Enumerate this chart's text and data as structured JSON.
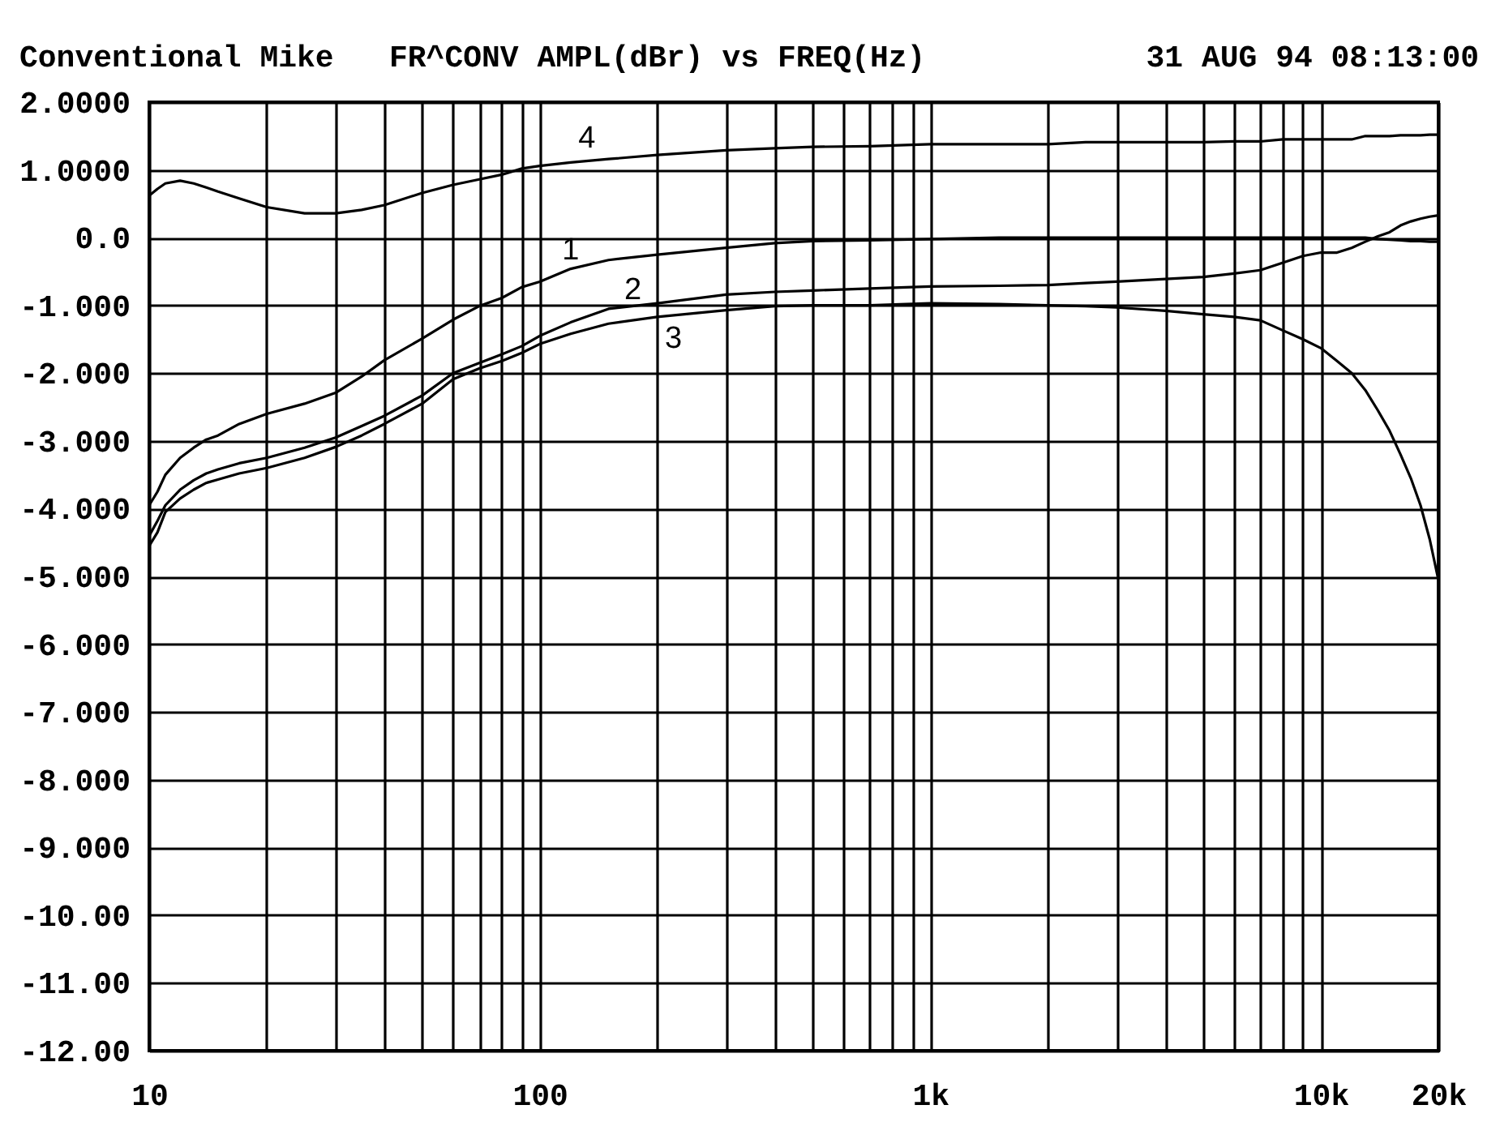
{
  "chart_data": {
    "type": "line",
    "title": "Conventional Mike",
    "subtitle": "FR^CONV AMPL(dBr) vs FREQ(Hz)",
    "annotations": [
      "31 AUG 94 08:13:00"
    ],
    "x": [
      10,
      10.5,
      11,
      12,
      13,
      14,
      15,
      17,
      20,
      25,
      30,
      35,
      40,
      50,
      60,
      70,
      80,
      90,
      100,
      120,
      150,
      200,
      300,
      400,
      500,
      700,
      1000,
      1500,
      2000,
      2500,
      3000,
      4000,
      5000,
      6000,
      7000,
      8000,
      9000,
      10000,
      11000,
      12000,
      13000,
      14000,
      15000,
      16000,
      17000,
      18000,
      19000,
      20000
    ],
    "series": [
      {
        "name": "1",
        "color": "#000000",
        "values": [
          -3.95,
          -3.75,
          -3.5,
          -3.25,
          -3.1,
          -2.98,
          -2.92,
          -2.75,
          -2.6,
          -2.45,
          -2.29,
          -2.05,
          -1.81,
          -1.49,
          -1.21,
          -1.01,
          -0.89,
          -0.73,
          -0.65,
          -0.46,
          -0.33,
          -0.25,
          -0.15,
          -0.08,
          -0.05,
          -0.04,
          -0.02,
          0,
          0,
          0,
          0,
          0,
          0,
          0,
          0,
          0,
          0,
          0,
          0,
          0,
          0,
          -0.02,
          -0.03,
          -0.04,
          -0.05,
          -0.05,
          -0.06,
          -0.06
        ]
      },
      {
        "name": "2",
        "color": "#000000",
        "values": [
          -4.4,
          -4.18,
          -3.95,
          -3.72,
          -3.58,
          -3.48,
          -3.42,
          -3.33,
          -3.25,
          -3.1,
          -2.95,
          -2.78,
          -2.63,
          -2.33,
          -2.0,
          -1.85,
          -1.72,
          -1.6,
          -1.45,
          -1.25,
          -1.05,
          -0.97,
          -0.84,
          -0.8,
          -0.78,
          -0.75,
          -0.72,
          -0.71,
          -0.7,
          -0.67,
          -0.65,
          -0.61,
          -0.58,
          -0.53,
          -0.48,
          -0.37,
          -0.27,
          -0.22,
          -0.22,
          -0.15,
          -0.06,
          0.02,
          0.08,
          0.18,
          0.24,
          0.28,
          0.31,
          0.33
        ]
      },
      {
        "name": "3",
        "color": "#000000",
        "values": [
          -4.55,
          -4.35,
          -4.05,
          -3.85,
          -3.72,
          -3.62,
          -3.57,
          -3.48,
          -3.4,
          -3.25,
          -3.09,
          -2.92,
          -2.75,
          -2.45,
          -2.09,
          -1.93,
          -1.82,
          -1.7,
          -1.57,
          -1.42,
          -1.27,
          -1.17,
          -1.07,
          -1.01,
          -1.0,
          -1.0,
          -0.97,
          -0.98,
          -1.0,
          -1.01,
          -1.03,
          -1.08,
          -1.13,
          -1.17,
          -1.22,
          -1.37,
          -1.5,
          -1.63,
          -1.82,
          -2.0,
          -2.25,
          -2.55,
          -2.85,
          -3.2,
          -3.55,
          -3.95,
          -4.45,
          -5.05
        ]
      },
      {
        "name": "4",
        "color": "#000000",
        "values": [
          0.62,
          0.72,
          0.8,
          0.84,
          0.8,
          0.74,
          0.68,
          0.58,
          0.45,
          0.36,
          0.36,
          0.41,
          0.48,
          0.66,
          0.78,
          0.86,
          0.93,
          1.02,
          1.06,
          1.11,
          1.16,
          1.22,
          1.29,
          1.32,
          1.34,
          1.35,
          1.38,
          1.38,
          1.38,
          1.41,
          1.41,
          1.41,
          1.41,
          1.42,
          1.42,
          1.45,
          1.45,
          1.45,
          1.45,
          1.45,
          1.5,
          1.5,
          1.5,
          1.51,
          1.51,
          1.51,
          1.52,
          1.52
        ]
      }
    ],
    "xlim": [
      10,
      20000
    ],
    "ylim": [
      -12,
      2
    ],
    "xticks": [
      10,
      {
        "value": 20,
        "label": null
      },
      {
        "value": 30,
        "label": null
      },
      {
        "value": 40,
        "label": null
      },
      {
        "value": 50,
        "label": null
      },
      {
        "value": 60,
        "label": null
      },
      {
        "value": 70,
        "label": null
      },
      {
        "value": 80,
        "label": null
      },
      {
        "value": 90,
        "label": null
      },
      100,
      {
        "value": 200,
        "label": null
      },
      {
        "value": 300,
        "label": null
      },
      {
        "value": 400,
        "label": null
      },
      {
        "value": 500,
        "label": null
      },
      {
        "value": 600,
        "label": null
      },
      {
        "value": 700,
        "label": null
      },
      {
        "value": 800,
        "label": null
      },
      {
        "value": 900,
        "label": null
      },
      {
        "value": 1000,
        "label": "1k"
      },
      {
        "value": 2000,
        "label": null
      },
      {
        "value": 3000,
        "label": null
      },
      {
        "value": 4000,
        "label": null
      },
      {
        "value": 5000,
        "label": null
      },
      {
        "value": 6000,
        "label": null
      },
      {
        "value": 7000,
        "label": null
      },
      {
        "value": 8000,
        "label": null
      },
      {
        "value": 9000,
        "label": null
      },
      {
        "value": 10000,
        "label": "10k"
      },
      {
        "value": 20000,
        "label": "20k"
      }
    ],
    "yticks": [
      {
        "value": 2,
        "label": "2.0000"
      },
      {
        "value": 1,
        "label": "1.0000"
      },
      {
        "value": 0,
        "label": "0.0"
      },
      {
        "value": -1,
        "label": "-1.000"
      },
      {
        "value": -2,
        "label": "-2.000"
      },
      {
        "value": -3,
        "label": "-3.000"
      },
      {
        "value": -4,
        "label": "-4.000"
      },
      {
        "value": -5,
        "label": "-5.000"
      },
      {
        "value": -6,
        "label": "-6.000"
      },
      {
        "value": -7,
        "label": "-7.000"
      },
      {
        "value": -8,
        "label": "-8.000"
      },
      {
        "value": -9,
        "label": "-9.000"
      },
      {
        "value": -10,
        "label": "-10.00"
      },
      {
        "value": -11,
        "label": "-11.00"
      },
      {
        "value": -12,
        "label": "-12.00"
      }
    ],
    "log": "x",
    "grid": true
  }
}
